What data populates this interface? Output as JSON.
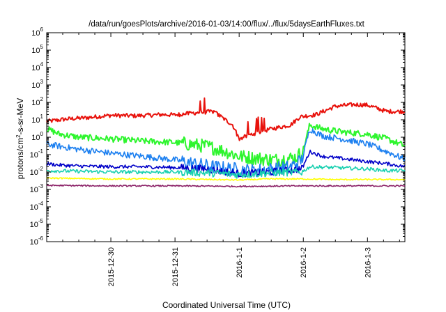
{
  "chart_data": {
    "type": "line",
    "title": "/data/run/goesPlots/archive/2016-01-03/14:00/flux/../flux/5daysEarthFluxes.txt",
    "xlabel": "Coordinated Universal Time (UTC)",
    "ylabel_base": "protons/cm",
    "ylabel_sup": "2",
    "ylabel_rest": "-s-sr-MeV",
    "y_scale": "log",
    "ylim": [
      1e-06,
      1000000.0
    ],
    "yticks": [
      {
        "base": "10",
        "exp": "6",
        "value": 1000000.0
      },
      {
        "base": "10",
        "exp": "5",
        "value": 100000.0
      },
      {
        "base": "10",
        "exp": "4",
        "value": 10000.0
      },
      {
        "base": "10",
        "exp": "3",
        "value": 1000.0
      },
      {
        "base": "10",
        "exp": "2",
        "value": 100.0
      },
      {
        "base": "10",
        "exp": "1",
        "value": 10.0
      },
      {
        "base": "10",
        "exp": "0",
        "value": 1
      },
      {
        "base": "10",
        "exp": "-1",
        "value": 0.1
      },
      {
        "base": "10",
        "exp": "-2",
        "value": 0.01
      },
      {
        "base": "10",
        "exp": "-3",
        "value": 0.001
      },
      {
        "base": "10",
        "exp": "-4",
        "value": 0.0001
      },
      {
        "base": "10",
        "exp": "-5",
        "value": 1e-05
      },
      {
        "base": "10",
        "exp": "-6",
        "value": 1e-06
      }
    ],
    "x_range_days": [
      "2015-12-29 00:00",
      "2016-01-03 14:00"
    ],
    "xticks": [
      {
        "label": "2015-12-30",
        "day": 1
      },
      {
        "label": "2015-12-31",
        "day": 2
      },
      {
        "label": "2016-1-1",
        "day": 3
      },
      {
        "label": "2016-1-2",
        "day": 4
      },
      {
        "label": "2016-1-3",
        "day": 5
      }
    ],
    "grid": false,
    "legend": "none",
    "series": [
      {
        "color": "#e8120c",
        "x": [
          0.0,
          0.3,
          0.6,
          1.0,
          1.4,
          1.8,
          2.0,
          2.3,
          2.6,
          2.9,
          3.0,
          3.2,
          3.5,
          3.8,
          3.95,
          4.2,
          4.5,
          4.8,
          5.0,
          5.3,
          5.6
        ],
        "y": [
          8,
          11,
          13,
          18,
          17,
          20,
          19,
          25,
          30,
          5,
          0.8,
          1.5,
          3,
          5,
          15,
          20,
          60,
          75,
          70,
          30,
          30
        ]
      },
      {
        "color": "#2ef52e",
        "x": [
          0.0,
          0.2,
          0.5,
          1.0,
          1.5,
          2.0,
          2.5,
          2.8,
          3.0,
          3.3,
          3.6,
          3.9,
          4.0,
          4.1,
          4.3,
          4.6,
          5.0,
          5.3,
          5.6
        ],
        "y": [
          3,
          1.5,
          1.0,
          0.8,
          0.6,
          0.5,
          0.3,
          0.15,
          0.08,
          0.06,
          0.05,
          0.07,
          0.2,
          5,
          3,
          2,
          1.5,
          0.8,
          0.3
        ]
      },
      {
        "color": "#1b7ff0",
        "x": [
          0.0,
          0.2,
          0.5,
          1.0,
          1.5,
          2.0,
          2.3,
          2.6,
          2.9,
          3.2,
          3.5,
          3.8,
          3.98,
          4.1,
          4.3,
          4.6,
          5.0,
          5.3,
          5.6
        ],
        "y": [
          0.4,
          0.3,
          0.2,
          0.12,
          0.08,
          0.05,
          0.03,
          0.02,
          0.015,
          0.012,
          0.015,
          0.02,
          0.05,
          3,
          1.2,
          0.8,
          0.4,
          0.15,
          0.05
        ]
      },
      {
        "color": "#0000c8",
        "x": [
          0.0,
          0.2,
          0.5,
          1.0,
          1.5,
          2.0,
          2.5,
          3.0,
          3.5,
          3.98,
          4.1,
          4.3,
          4.6,
          5.0,
          5.3,
          5.6
        ],
        "y": [
          0.03,
          0.025,
          0.022,
          0.02,
          0.02,
          0.018,
          0.015,
          0.008,
          0.01,
          0.015,
          0.15,
          0.08,
          0.06,
          0.04,
          0.03,
          0.02
        ]
      },
      {
        "color": "#18d0b0",
        "x": [
          0.0,
          0.5,
          1.0,
          1.5,
          2.0,
          2.5,
          3.0,
          3.5,
          3.98,
          4.1,
          4.5,
          5.0,
          5.3,
          5.6
        ],
        "y": [
          0.012,
          0.011,
          0.01,
          0.01,
          0.01,
          0.009,
          0.007,
          0.009,
          0.01,
          0.02,
          0.018,
          0.015,
          0.012,
          0.012
        ]
      },
      {
        "color": "#ffff00",
        "x": [
          0.0,
          1.0,
          2.0,
          3.0,
          3.5,
          4.0,
          4.5,
          5.0,
          5.6
        ],
        "y": [
          0.0045,
          0.004,
          0.004,
          0.0035,
          0.004,
          0.004,
          0.0037,
          0.0037,
          0.0037
        ]
      },
      {
        "color": "#8b2167",
        "x": [
          0.0,
          1.0,
          2.0,
          3.0,
          4.0,
          5.0,
          5.6
        ],
        "y": [
          0.0017,
          0.0016,
          0.0016,
          0.0015,
          0.0016,
          0.0016,
          0.0016
        ]
      }
    ]
  }
}
